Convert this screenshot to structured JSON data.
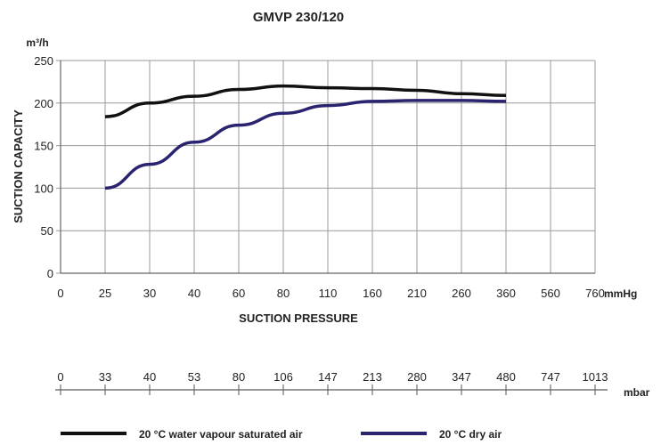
{
  "chart_data": {
    "type": "line",
    "title": "GMVP 230/120",
    "ylabel": "SUCTION CAPACITY",
    "yunit": "m³/h",
    "xlabel": "SUCTION PRESSURE",
    "xunit": "mmHg",
    "ylim": [
      0,
      250
    ],
    "yticks": [
      "0",
      "50",
      "100",
      "150",
      "200",
      "250"
    ],
    "categories": [
      "0",
      "25",
      "30",
      "40",
      "60",
      "80",
      "110",
      "160",
      "210",
      "260",
      "360",
      "560",
      "760"
    ],
    "secondary_axis": {
      "unit": "mbar",
      "ticks": [
        "0",
        "33",
        "40",
        "53",
        "80",
        "106",
        "147",
        "213",
        "280",
        "347",
        "480",
        "747",
        "1013"
      ]
    },
    "grid": true,
    "legend_position": "bottom",
    "series": [
      {
        "name": "20 °C water vapour saturated air",
        "color": "#111111",
        "x": [
          "25",
          "30",
          "40",
          "60",
          "80",
          "110",
          "160",
          "210",
          "260",
          "360"
        ],
        "values": [
          184,
          200,
          208,
          216,
          220,
          218,
          217,
          215,
          211,
          209
        ]
      },
      {
        "name": "20 °C dry air",
        "color": "#2a2470",
        "x": [
          "25",
          "30",
          "40",
          "60",
          "80",
          "110",
          "160",
          "210",
          "260",
          "360"
        ],
        "values": [
          100,
          128,
          154,
          174,
          188,
          197,
          202,
          203,
          203,
          202
        ]
      }
    ]
  }
}
